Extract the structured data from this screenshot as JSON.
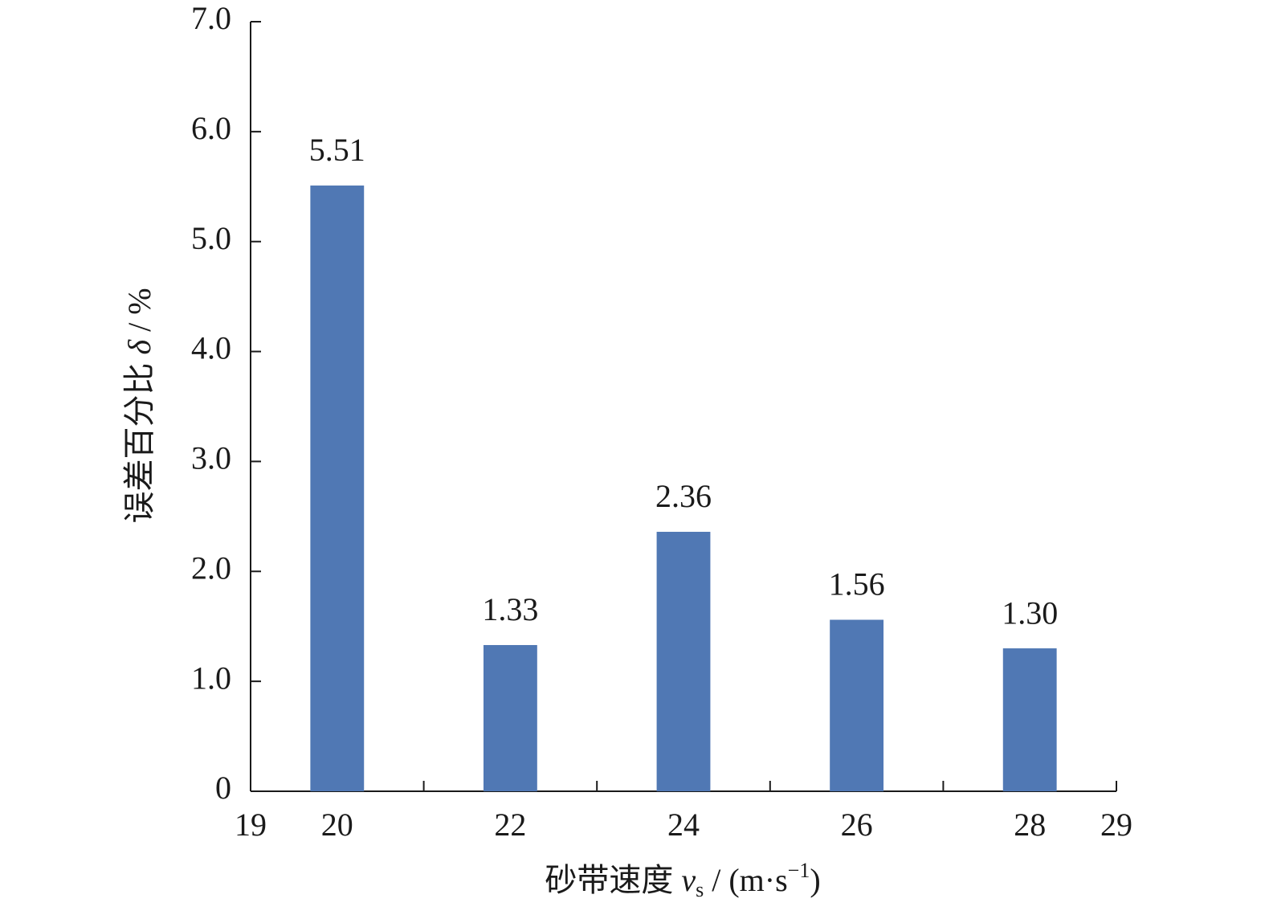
{
  "chart_data": {
    "type": "bar",
    "y_label": {
      "text": "误差百分比 ",
      "var": "δ",
      "unit": " / %"
    },
    "x_label": {
      "text": "砂带速度 ",
      "var": "v",
      "sub": "s",
      "unit": " / (m·s",
      "sup": "−1",
      "close": ")"
    },
    "x": [
      20,
      22,
      24,
      26,
      28
    ],
    "values": [
      5.51,
      1.33,
      2.36,
      1.56,
      1.3
    ],
    "value_labels": [
      "5.51",
      "1.33",
      "2.36",
      "1.56",
      "1.30"
    ],
    "color": "#5078b4",
    "xlim": [
      19,
      29
    ],
    "xticks": [
      19,
      20,
      22,
      24,
      26,
      28,
      29
    ],
    "x_minor_ticks": [
      21,
      23,
      25,
      27,
      29
    ],
    "ylim": [
      0,
      7
    ],
    "yticks": [
      0,
      {
        "value": 1,
        "label": "1.0"
      },
      {
        "value": 2,
        "label": "2.0"
      },
      {
        "value": 3,
        "label": "3.0"
      },
      {
        "value": 4,
        "label": "4.0"
      },
      {
        "value": 5,
        "label": "5.0"
      },
      {
        "value": 6,
        "label": "6.0"
      },
      {
        "value": 7,
        "label": "7.0"
      }
    ],
    "grid": false
  }
}
